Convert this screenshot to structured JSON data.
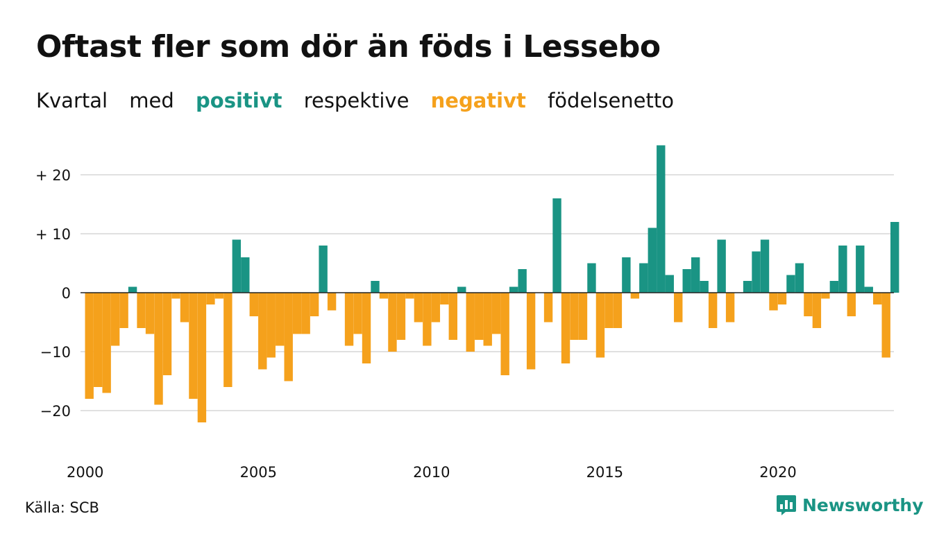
{
  "header": {
    "title": "Oftast fler som dör än föds i Lessebo",
    "subtitle": {
      "w1": "Kvartal",
      "w2": "med",
      "positive": "positivt",
      "w3": "respektive",
      "negative": "negativt",
      "w4": "födelsenetto"
    }
  },
  "footer": {
    "source": "Källa: SCB",
    "brand": "Newsworthy"
  },
  "colors": {
    "positive": "#1a9484",
    "negative": "#f5a11c",
    "grid": "#e0e0e0",
    "baseline": "#222222"
  },
  "chart_data": {
    "type": "bar",
    "x_start_year": 2000,
    "period": "quarter",
    "ylim": [
      -25,
      26
    ],
    "yticks": [
      20,
      10,
      0,
      -10,
      -20
    ],
    "ytick_labels": [
      "+ 20",
      "+ 10",
      "0",
      "−10",
      "−20"
    ],
    "xtick_labels": [
      "2000",
      "2005",
      "2010",
      "2015",
      "2020"
    ],
    "grid": true,
    "values": [
      -18,
      -16,
      -17,
      -9,
      -6,
      1,
      -6,
      -7,
      -19,
      -14,
      -1,
      -5,
      -18,
      -22,
      -2,
      -1,
      -16,
      9,
      6,
      -4,
      -13,
      -11,
      -9,
      -15,
      -7,
      -7,
      -4,
      8,
      -3,
      0,
      -9,
      -7,
      -12,
      2,
      -1,
      -10,
      -8,
      -1,
      -5,
      -9,
      -5,
      -2,
      -8,
      1,
      -10,
      -8,
      -9,
      -7,
      -14,
      1,
      4,
      -13,
      0,
      -5,
      16,
      -12,
      -8,
      -8,
      5,
      -11,
      -6,
      -6,
      6,
      -1,
      5,
      11,
      25,
      3,
      -5,
      4,
      6,
      2,
      -6,
      9,
      -5,
      0,
      2,
      7,
      9,
      -3,
      -2,
      3,
      5,
      -4,
      -6,
      -1,
      2,
      8,
      -4,
      8,
      1,
      -2,
      -11,
      12
    ]
  }
}
